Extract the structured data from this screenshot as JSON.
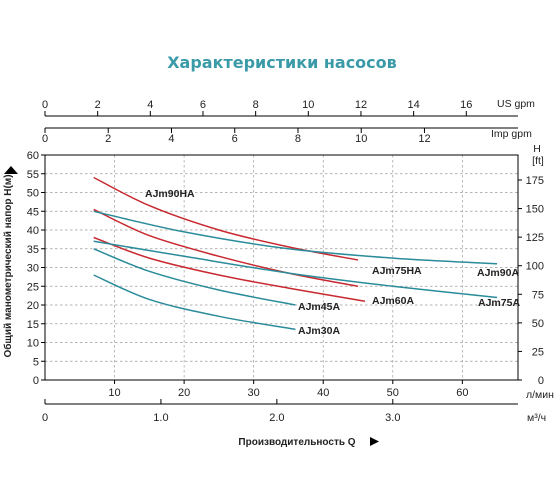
{
  "chart_data": {
    "type": "line",
    "title": "Характеристики насосов",
    "grid": true,
    "x_axes": {
      "us_gpm": {
        "label": "US gpm",
        "ticks": [
          0,
          2,
          4,
          6,
          8,
          10,
          12,
          14,
          16
        ]
      },
      "imp_gpm": {
        "label": "Imp gpm",
        "ticks": [
          0,
          2,
          4,
          6,
          8,
          10,
          12
        ]
      },
      "l_min": {
        "label": "л/мин",
        "ticks": [
          10,
          20,
          30,
          40,
          50,
          60
        ]
      },
      "m3_h": {
        "label": "м³/ч",
        "ticks": [
          "0",
          "1.0",
          "2.0",
          "3.0"
        ]
      }
    },
    "xlabel": "Производительность Q",
    "xlim": [
      0,
      68
    ],
    "ylabel": "Общий манометрический напор H(м)",
    "ylim": [
      0,
      60
    ],
    "y_ticks": [
      0,
      5,
      10,
      15,
      20,
      25,
      30,
      35,
      40,
      45,
      50,
      55,
      60
    ],
    "y2_label": "H",
    "y2_unit": "[ft]",
    "y2_ticks": [
      0,
      25,
      50,
      75,
      100,
      125,
      150,
      175
    ],
    "series": [
      {
        "name": "AJm90HA",
        "color": "#c8282f",
        "x": [
          7,
          15,
          25,
          35,
          45
        ],
        "y": [
          54,
          46.5,
          40,
          35.5,
          32
        ]
      },
      {
        "name": "AJm75HA",
        "color": "#c8282f",
        "x": [
          7,
          15,
          25,
          35,
          45
        ],
        "y": [
          45.5,
          38.5,
          33,
          28.5,
          25
        ]
      },
      {
        "name": "AJm60A",
        "color": "#c8282f",
        "x": [
          7,
          15,
          25,
          35,
          46
        ],
        "y": [
          38,
          32.5,
          28,
          24.5,
          21
        ]
      },
      {
        "name": "AJm90A",
        "color": "#2a8c9a",
        "x": [
          7,
          20,
          35,
          50,
          65
        ],
        "y": [
          45,
          39.5,
          35,
          32.5,
          31
        ]
      },
      {
        "name": "AJm75A",
        "color": "#2a8c9a",
        "x": [
          7,
          20,
          35,
          50,
          65
        ],
        "y": [
          37,
          33,
          28.5,
          25,
          22
        ]
      },
      {
        "name": "AJm45A",
        "color": "#2a8c9a",
        "x": [
          7,
          15,
          25,
          36
        ],
        "y": [
          35,
          29,
          24,
          20
        ]
      },
      {
        "name": "AJm30A",
        "color": "#2a8c9a",
        "x": [
          7,
          15,
          25,
          36
        ],
        "y": [
          28,
          21.5,
          17,
          13.5
        ]
      }
    ]
  }
}
